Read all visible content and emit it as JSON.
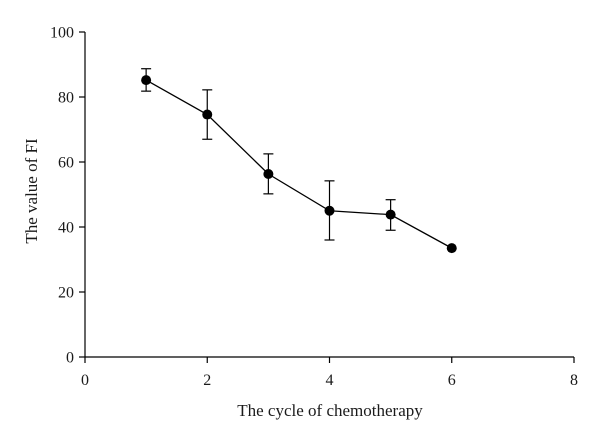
{
  "chart_data": {
    "type": "line",
    "xlabel": "The cycle of chemotherapy",
    "ylabel": "The value of FI",
    "xlim": [
      0,
      8
    ],
    "ylim": [
      0,
      100
    ],
    "xticks": [
      0,
      2,
      4,
      6,
      8
    ],
    "yticks": [
      0,
      20,
      40,
      60,
      80,
      100
    ],
    "grid": false,
    "series": [
      {
        "x": [
          1,
          2,
          3,
          4,
          5,
          6
        ],
        "y": [
          85.2,
          74.6,
          56.3,
          45.0,
          43.8,
          33.5
        ],
        "err_high": [
          88.7,
          82.2,
          62.5,
          54.2,
          48.4,
          null
        ],
        "err_low": [
          81.8,
          67.0,
          50.2,
          36.0,
          39.0,
          null
        ],
        "marker": "filled-circle",
        "color": "#000000"
      }
    ]
  }
}
